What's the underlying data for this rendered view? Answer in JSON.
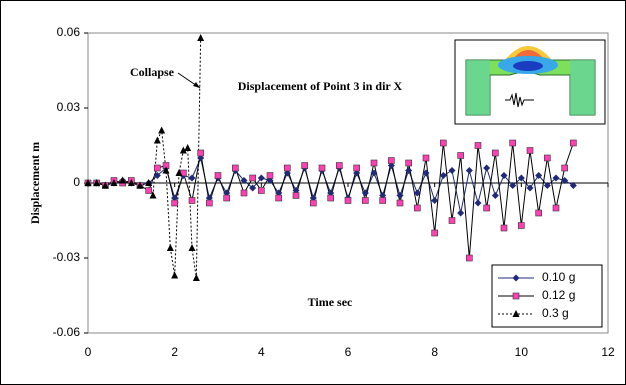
{
  "chart_data": {
    "type": "line",
    "title": "Displacement of Point  3  in dir X",
    "annotation": "Collapse",
    "x_label": "Time   sec",
    "y_label": "Displacement  m",
    "xlim": [
      0,
      12
    ],
    "xticks": [
      0,
      2,
      4,
      6,
      8,
      10,
      12
    ],
    "ylim": [
      -0.06,
      0.06
    ],
    "yticks": [
      0.06,
      0.03,
      0,
      -0.03,
      -0.06
    ],
    "grid": false,
    "legend": "lower right",
    "series": [
      {
        "name": "0.10 g",
        "color": "#1f2a78",
        "marker": "diamond",
        "line_style": "solid",
        "x": [
          0,
          0.2,
          0.4,
          0.6,
          0.8,
          1.0,
          1.2,
          1.4,
          1.6,
          1.8,
          2.0,
          2.2,
          2.4,
          2.6,
          2.8,
          3.0,
          3.2,
          3.4,
          3.6,
          3.8,
          4.0,
          4.2,
          4.4,
          4.6,
          4.8,
          5.0,
          5.2,
          5.4,
          5.6,
          5.8,
          6.0,
          6.2,
          6.4,
          6.6,
          6.8,
          7.0,
          7.2,
          7.4,
          7.6,
          7.8,
          8.0,
          8.2,
          8.4,
          8.6,
          8.8,
          9.0,
          9.2,
          9.4,
          9.6,
          9.8,
          10.0,
          10.2,
          10.4,
          10.6,
          10.8,
          11.0,
          11.2
        ],
        "values": [
          0,
          0,
          -0.001,
          0,
          0.001,
          0,
          -0.001,
          0,
          0.003,
          0.006,
          -0.006,
          0.003,
          0.002,
          0.01,
          -0.006,
          0.002,
          -0.004,
          0.005,
          0.001,
          -0.002,
          0.002,
          0.001,
          -0.004,
          0.004,
          -0.003,
          0.006,
          -0.006,
          0.005,
          -0.004,
          0.006,
          -0.006,
          0.004,
          -0.004,
          0.004,
          -0.005,
          0.007,
          -0.005,
          0.005,
          -0.004,
          0.004,
          -0.007,
          0.003,
          0.005,
          -0.012,
          0.005,
          -0.008,
          0.006,
          -0.005,
          0.003,
          -0.001,
          0.002,
          -0.002,
          0.003,
          -0.001,
          0.002,
          0.001,
          -0.001
        ]
      },
      {
        "name": "0.12 g",
        "color": "#ff3fb4",
        "marker": "square",
        "line_style": "solid",
        "x": [
          0,
          0.2,
          0.4,
          0.6,
          0.8,
          1.0,
          1.2,
          1.4,
          1.6,
          1.8,
          2.0,
          2.2,
          2.4,
          2.6,
          2.8,
          3.0,
          3.2,
          3.4,
          3.6,
          3.8,
          4.0,
          4.2,
          4.4,
          4.6,
          4.8,
          5.0,
          5.2,
          5.4,
          5.6,
          5.8,
          6.0,
          6.2,
          6.4,
          6.6,
          6.8,
          7.0,
          7.2,
          7.4,
          7.6,
          7.8,
          8.0,
          8.2,
          8.4,
          8.6,
          8.8,
          9.0,
          9.2,
          9.4,
          9.6,
          9.8,
          10.0,
          10.2,
          10.4,
          10.6,
          10.8,
          11.0,
          11.2
        ],
        "values": [
          0,
          0,
          -0.001,
          0.001,
          0,
          0.001,
          -0.001,
          -0.003,
          0.006,
          0.007,
          -0.008,
          0.004,
          -0.007,
          0.012,
          -0.008,
          0.003,
          -0.006,
          0.006,
          -0.004,
          0.002,
          -0.003,
          0.003,
          -0.006,
          0.006,
          -0.005,
          0.007,
          -0.008,
          0.006,
          -0.006,
          0.007,
          -0.007,
          0.006,
          -0.007,
          0.008,
          -0.007,
          0.009,
          -0.008,
          0.008,
          -0.01,
          0.01,
          -0.02,
          0.016,
          -0.015,
          0.011,
          -0.03,
          0.015,
          -0.01,
          0.012,
          -0.018,
          0.016,
          -0.017,
          0.013,
          -0.012,
          0.01,
          -0.01,
          0.006,
          0.016
        ]
      },
      {
        "name": "0.3 g",
        "color": "#000000",
        "marker": "triangle",
        "line_style": "dashed",
        "x": [
          0,
          0.2,
          0.4,
          0.6,
          0.8,
          1.0,
          1.2,
          1.4,
          1.5,
          1.6,
          1.7,
          1.8,
          1.9,
          2.0,
          2.1,
          2.2,
          2.3,
          2.4,
          2.5,
          2.6
        ],
        "values": [
          0,
          0,
          -0.001,
          0,
          0.001,
          0,
          -0.001,
          0,
          -0.005,
          0.017,
          0.021,
          0.005,
          -0.026,
          -0.037,
          0.004,
          0.013,
          0.014,
          -0.026,
          -0.038,
          0.058
        ]
      }
    ]
  }
}
